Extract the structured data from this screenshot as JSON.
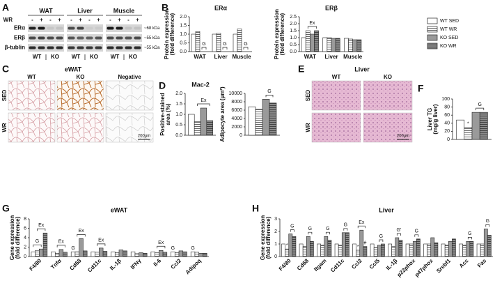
{
  "panels": [
    "A",
    "B",
    "C",
    "D",
    "E",
    "F",
    "G",
    "H"
  ],
  "blot": {
    "tissues": [
      "WAT",
      "Liver",
      "Muscle"
    ],
    "treatment": "WR",
    "signs": [
      "-",
      "+",
      "-",
      "+"
    ],
    "proteins": [
      "ERα",
      "ERβ",
      "β-tublin"
    ],
    "sizes": [
      "~68 kDa",
      "~55 kDa",
      "~55 kDa"
    ],
    "genotypes": [
      "WT",
      "KO"
    ]
  },
  "micrographs": {
    "adipose": {
      "title": "eWAT",
      "columns": [
        "WT",
        "KO",
        "Negative"
      ],
      "rows": [
        "SED",
        "WR"
      ],
      "scale": "200µm"
    },
    "liver": {
      "title": "Liver",
      "columns": [
        "WT",
        "KO"
      ],
      "rows": [
        "SED",
        "WR"
      ],
      "scale": "200µm"
    }
  },
  "legend": [
    {
      "name": "WT SED",
      "color": "#ffffff",
      "hatch": false
    },
    {
      "name": "WT WR",
      "color": "#ffffff",
      "hatch": true
    },
    {
      "name": "KO SED",
      "color": "#9a9a9a",
      "hatch": false
    },
    {
      "name": "KO WR",
      "color": "#8a8a8a",
      "hatch": true
    }
  ],
  "chart_data": [
    {
      "type": "bar",
      "title": "ERα",
      "ylabel": [
        "Protein expression",
        "(fold difference)"
      ],
      "categories": [
        "WAT",
        "Liver",
        "Muscle"
      ],
      "series": [
        {
          "values": [
            1.0,
            1.0,
            1.0
          ]
        },
        {
          "values": [
            1.15,
            1.05,
            1.3
          ]
        },
        {
          "values": [
            0,
            0,
            0
          ]
        },
        {
          "values": [
            0,
            0,
            0
          ]
        }
      ],
      "ylim": [
        0,
        2
      ],
      "yticks": [
        {
          "value": 0,
          "label": "0.0"
        },
        {
          "value": 0.5,
          "label": "0.5"
        },
        {
          "value": 1,
          "label": "1.0"
        },
        {
          "value": 1.5,
          "label": "1.5"
        },
        {
          "value": 2,
          "label": "2.0"
        }
      ],
      "annotations": [
        "G",
        "G",
        "G"
      ]
    },
    {
      "type": "bar",
      "title": "ERβ",
      "ylabel": [
        "Protein expression",
        "(fold difference)"
      ],
      "categories": [
        "WAT",
        "Liver",
        "Muscle"
      ],
      "series": [
        {
          "values": [
            1.0,
            1.0,
            0.95
          ]
        },
        {
          "values": [
            1.5,
            1.0,
            0.9
          ]
        },
        {
          "values": [
            1.25,
            0.95,
            0.85
          ]
        },
        {
          "values": [
            1.5,
            0.95,
            0.85
          ]
        }
      ],
      "ylim": [
        0,
        2.5
      ],
      "yticks": [
        {
          "value": 0,
          "label": "0.0"
        },
        {
          "value": 0.5,
          "label": "0.5"
        },
        {
          "value": 1,
          "label": "1.0"
        },
        {
          "value": 1.5,
          "label": "1.5"
        },
        {
          "value": 2,
          "label": "2.0"
        },
        {
          "value": 2.5,
          "label": "2.5"
        }
      ],
      "annotations": [
        "Ex"
      ]
    },
    {
      "type": "bar",
      "title": "Mac-2",
      "ylabel": [
        "Positive-stained",
        "area (%)"
      ],
      "categories": [
        null
      ],
      "series": [
        {
          "values": [
            1.0
          ]
        },
        {
          "values": [
            0.65
          ]
        },
        {
          "values": [
            1.3
          ]
        },
        {
          "values": [
            0.7
          ]
        }
      ],
      "ylim": [
        0,
        2
      ],
      "yticks": [
        {
          "value": 0,
          "label": "0.0"
        },
        {
          "value": 0.5,
          "label": "0.5"
        },
        {
          "value": 1,
          "label": "1.0"
        },
        {
          "value": 1.5,
          "label": "1.5"
        },
        {
          "value": 2,
          "label": "2.0"
        }
      ],
      "annotations": [
        "Ex"
      ]
    },
    {
      "type": "bar",
      "ylabel": [
        "Adipocyte area (µm²)"
      ],
      "categories": [
        null
      ],
      "series": [
        {
          "values": [
            6800
          ]
        },
        {
          "values": [
            6200
          ]
        },
        {
          "values": [
            8600
          ]
        },
        {
          "values": [
            7700
          ]
        }
      ],
      "ylim": [
        0,
        10000
      ],
      "yticks": [
        0,
        2000,
        4000,
        6000,
        8000,
        10000
      ],
      "annotations": [
        "G"
      ]
    },
    {
      "type": "bar",
      "ylabel": [
        "Liver TG",
        "(mg/g liver)"
      ],
      "categories": [
        null
      ],
      "series": [
        {
          "values": [
            48
          ]
        },
        {
          "values": [
            30
          ]
        },
        {
          "values": [
            67
          ]
        },
        {
          "values": [
            67
          ]
        }
      ],
      "ylim": [
        0,
        100
      ],
      "yticks": [
        0,
        20,
        40,
        60,
        80,
        100
      ],
      "annotations": [
        "*",
        "G"
      ]
    },
    {
      "type": "bar",
      "title": "eWAT",
      "ylabel": [
        "Gene expression",
        "(fold difference)"
      ],
      "categories": [
        "F4/80",
        "Tnfα",
        "Cd68",
        "Cd11c",
        "IL-1β",
        "IFNγ",
        "Il-6",
        "Ccl2",
        "Adipoq"
      ],
      "series": [
        {
          "values": [
            1.0,
            1.0,
            1.0,
            1.0,
            1.0,
            1.0,
            1.0,
            1.0,
            1.0
          ]
        },
        {
          "values": [
            1.3,
            0.7,
            1.0,
            0.9,
            0.8,
            0.6,
            0.8,
            0.8,
            0.9
          ]
        },
        {
          "values": [
            1.6,
            1.5,
            3.8,
            1.8,
            1.4,
            0.8,
            1.3,
            1.2,
            0.7
          ]
        },
        {
          "values": [
            5.0,
            0.9,
            1.2,
            1.1,
            1.2,
            0.7,
            0.9,
            1.0,
            0.7
          ]
        }
      ],
      "ylim": [
        0,
        8
      ],
      "yticks": [
        0,
        2,
        4,
        6,
        8
      ],
      "annotations": [
        "G",
        "Ex",
        "Ex",
        "G",
        "Ex",
        "Ex",
        "Ex",
        "G",
        "G"
      ]
    },
    {
      "type": "bar",
      "title": "Liver",
      "ylabel": [
        "Gene expression",
        "(fold difference)"
      ],
      "categories": [
        "F4/80",
        "Cd68",
        "Itgam",
        "Cd11c",
        "Ccl2",
        "Ccl5",
        "IL-1β",
        "p22phox",
        "p47phox",
        "Srebf1",
        "Acc",
        "Fas"
      ],
      "series": [
        {
          "values": [
            1.0,
            1.0,
            1.0,
            1.0,
            1.0,
            1.0,
            1.0,
            1.0,
            1.0,
            1.0,
            1.0,
            1.0
          ]
        },
        {
          "values": [
            0.6,
            0.8,
            0.9,
            0.9,
            0.5,
            0.7,
            0.8,
            1.0,
            1.0,
            0.9,
            0.9,
            1.0
          ]
        },
        {
          "values": [
            1.8,
            1.6,
            1.6,
            1.9,
            2.1,
            0.9,
            1.5,
            1.2,
            1.5,
            1.2,
            1.2,
            2.2
          ]
        },
        {
          "values": [
            1.6,
            1.2,
            1.3,
            1.9,
            0.8,
            1.0,
            1.3,
            1.4,
            1.1,
            1.4,
            1.2,
            1.7
          ]
        }
      ],
      "ylim": [
        0,
        3
      ],
      "yticks": [
        0,
        1,
        2,
        3
      ],
      "annotations": [
        "G",
        "G",
        "G",
        "G",
        "Ex",
        "G",
        "G'",
        "G",
        "G",
        "G",
        "*",
        "*",
        "#"
      ]
    }
  ]
}
